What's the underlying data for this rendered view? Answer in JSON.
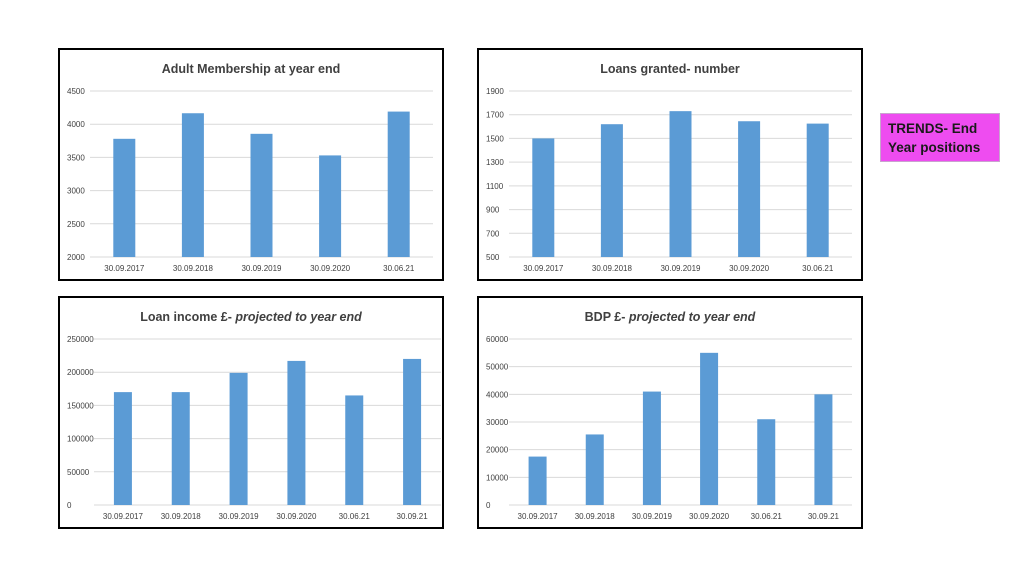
{
  "side_label": "TRENDS- End Year positions",
  "colors": {
    "bar": "#5b9bd5",
    "grid": "#d9d9d9",
    "label_bg": "#ee4cf0"
  },
  "chart_data": [
    {
      "type": "bar",
      "title": "Adult Membership at year end",
      "title_parts": [
        {
          "text": "Adult Membership at year end",
          "italic": false
        }
      ],
      "categories": [
        "30.09.2017",
        "30.09.2018",
        "30.09.2019",
        "30.09.2020",
        "30.06.21"
      ],
      "values": [
        3780,
        4165,
        3855,
        3530,
        4190
      ],
      "ylim": [
        2000,
        4500
      ],
      "yticks": [
        2000,
        2500,
        3000,
        3500,
        4000,
        4500
      ],
      "grid": true,
      "legend": "none"
    },
    {
      "type": "bar",
      "title": "Loans granted- number",
      "title_parts": [
        {
          "text": "Loans granted- number",
          "italic": false
        }
      ],
      "categories": [
        "30.09.2017",
        "30.09.2018",
        "30.09.2019",
        "30.09.2020",
        "30.06.21"
      ],
      "values": [
        1500,
        1620,
        1730,
        1645,
        1625
      ],
      "ylim": [
        500,
        1900
      ],
      "yticks": [
        500,
        700,
        900,
        1100,
        1300,
        1500,
        1700,
        1900
      ],
      "grid": true,
      "legend": "none"
    },
    {
      "type": "bar",
      "title": "Loan income £- projected to year end",
      "title_parts": [
        {
          "text": "Loan income £- ",
          "italic": false
        },
        {
          "text": "projected to year end",
          "italic": true
        }
      ],
      "categories": [
        "30.09.2017",
        "30.09.2018",
        "30.09.2019",
        "30.09.2020",
        "30.06.21",
        "30.09.21"
      ],
      "values": [
        170000,
        170000,
        199000,
        217000,
        165000,
        220000
      ],
      "ylim": [
        0,
        250000
      ],
      "yticks": [
        0,
        50000,
        100000,
        150000,
        200000,
        250000
      ],
      "grid": true,
      "legend": "none"
    },
    {
      "type": "bar",
      "title": "BDP £- projected to year end",
      "title_parts": [
        {
          "text": "BDP £- ",
          "italic": false
        },
        {
          "text": "projected to year end",
          "italic": true
        }
      ],
      "categories": [
        "30.09.2017",
        "30.09.2018",
        "30.09.2019",
        "30.09.2020",
        "30.06.21",
        "30.09.21"
      ],
      "values": [
        17500,
        25500,
        41000,
        55000,
        31000,
        40000
      ],
      "ylim": [
        0,
        60000
      ],
      "yticks": [
        0,
        10000,
        20000,
        30000,
        40000,
        50000,
        60000
      ],
      "grid": true,
      "legend": "none"
    }
  ]
}
